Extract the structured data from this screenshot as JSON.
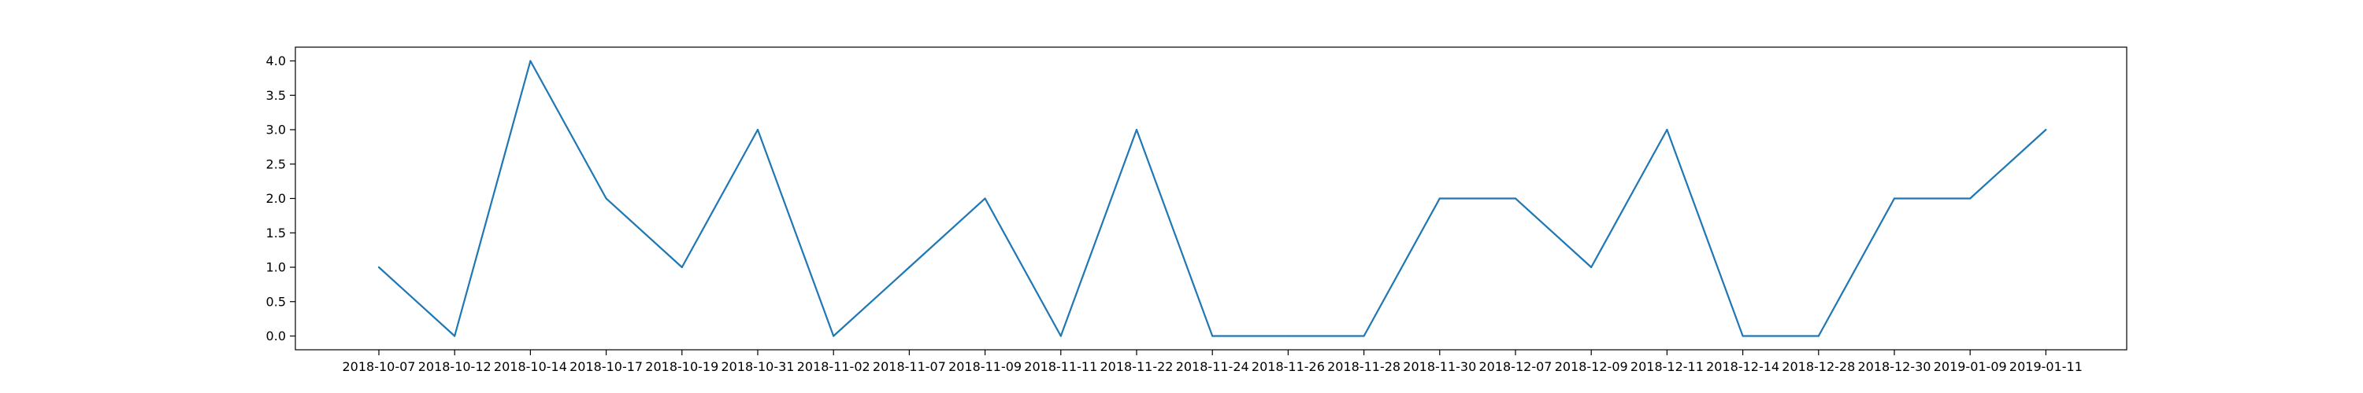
{
  "chart_data": {
    "type": "line",
    "title": "",
    "xlabel": "",
    "ylabel": "",
    "x": [
      "2018-10-07",
      "2018-10-12",
      "2018-10-14",
      "2018-10-17",
      "2018-10-19",
      "2018-10-31",
      "2018-11-02",
      "2018-11-07",
      "2018-11-09",
      "2018-11-11",
      "2018-11-22",
      "2018-11-24",
      "2018-11-26",
      "2018-11-28",
      "2018-11-30",
      "2018-12-07",
      "2018-12-09",
      "2018-12-11",
      "2018-12-14",
      "2018-12-28",
      "2018-12-30",
      "2019-01-09",
      "2019-01-11"
    ],
    "series": [
      {
        "values": [
          1,
          0,
          4,
          2,
          1,
          3,
          0,
          1,
          2,
          0,
          3,
          0,
          0,
          0,
          2,
          2,
          1,
          3,
          0,
          0,
          2,
          2,
          3
        ],
        "color": "#1f77b4"
      }
    ],
    "yticks": [
      "0.0",
      "0.5",
      "1.0",
      "1.5",
      "2.0",
      "2.5",
      "3.0",
      "3.5",
      "4.0"
    ],
    "ylim": [
      -0.2,
      4.2
    ],
    "grid": false,
    "legend": "none"
  }
}
